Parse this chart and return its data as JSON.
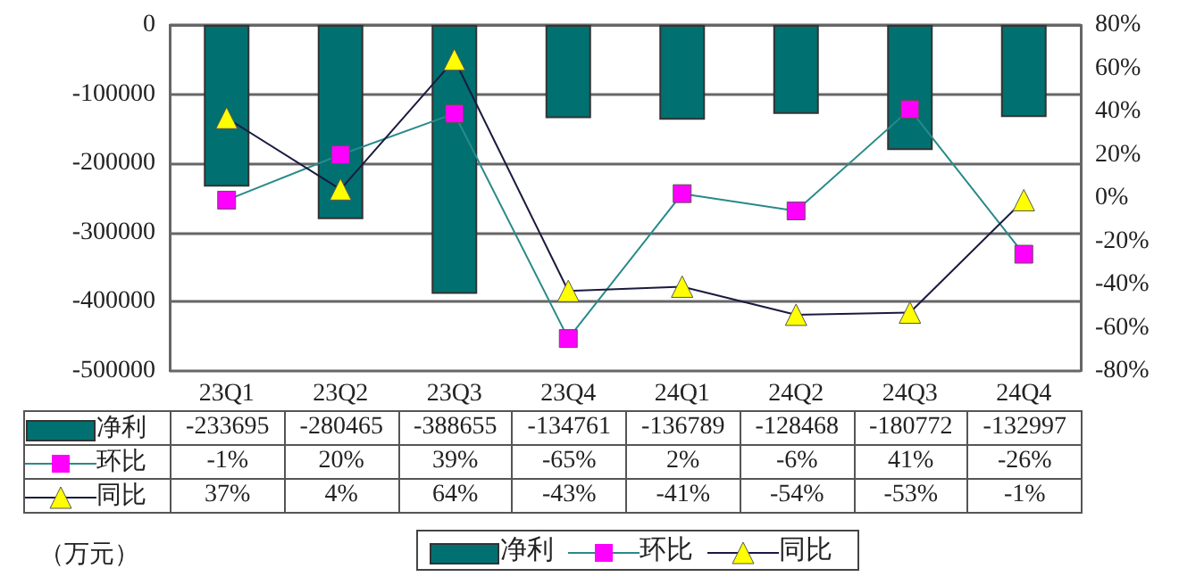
{
  "chart_data": {
    "type": "bar",
    "categories": [
      "23Q1",
      "23Q2",
      "23Q3",
      "23Q4",
      "24Q1",
      "24Q2",
      "24Q3",
      "24Q4"
    ],
    "series": [
      {
        "name": "净利",
        "color": "#007070",
        "values": [
          -233695,
          -280465,
          -388655,
          -134761,
          -136789,
          -128468,
          -180772,
          -132997
        ],
        "value_labels": [
          "-233695",
          "-280465",
          "-388655",
          "-134761",
          "-136789",
          "-128468",
          "-180772",
          "-132997"
        ]
      },
      {
        "name": "环比",
        "type": "line",
        "axis": "y2",
        "marker": "square",
        "color": "#ff00ff",
        "values": [
          -1,
          20,
          39,
          -65,
          2,
          -6,
          41,
          -26
        ],
        "value_labels": [
          "-1%",
          "20%",
          "39%",
          "-65%",
          "2%",
          "-6%",
          "41%",
          "-26%"
        ]
      },
      {
        "name": "同比",
        "type": "line",
        "axis": "y2",
        "marker": "triangle",
        "color": "#ffff00",
        "values": [
          37,
          4,
          64,
          -43,
          -41,
          -54,
          -53,
          -1
        ],
        "value_labels": [
          "37%",
          "4%",
          "64%",
          "-43%",
          "-41%",
          "-54%",
          "-53%",
          "-1%"
        ]
      }
    ],
    "ylim": [
      -500000,
      0
    ],
    "yticks": [
      -500000,
      -400000,
      -300000,
      -200000,
      -100000,
      0
    ],
    "y2lim": [
      -80,
      80
    ],
    "y2ticks": [
      {
        "value": -80,
        "label": "-80%"
      },
      {
        "value": -60,
        "label": "-60%"
      },
      {
        "value": -40,
        "label": "-40%"
      },
      {
        "value": -20,
        "label": "-20%"
      },
      {
        "value": 0,
        "label": "0%"
      },
      {
        "value": 20,
        "label": "20%"
      },
      {
        "value": 40,
        "label": "40%"
      },
      {
        "value": 60,
        "label": "60%"
      },
      {
        "value": 80,
        "label": "80%"
      }
    ],
    "grid": "y",
    "legend": "bottom",
    "annotations": [
      "（万元）"
    ]
  }
}
